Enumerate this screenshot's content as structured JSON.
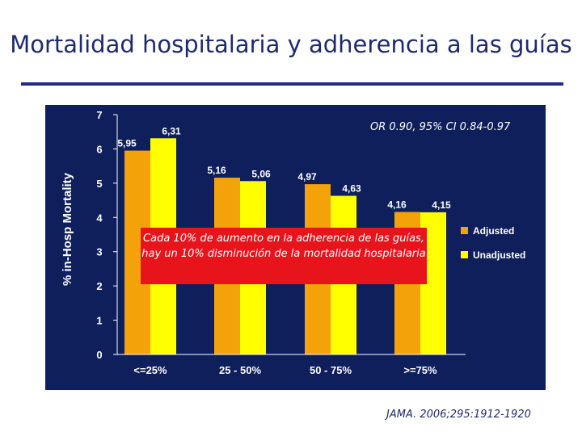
{
  "slide": {
    "title": "Mortalidad hospitalaria y adherencia a las guías",
    "annotation": "OR 0.90, 95% CI 0.84-0.97",
    "callout": "Cada 10% de aumento en la adherencia de las guías, hay un 10% disminución de la mortalidad hospitalaria",
    "citation": "JAMA. 2006;295:1912-1920"
  },
  "colors": {
    "background": "#0f1f5c",
    "adjusted": "#f4a20a",
    "unadjusted": "#ffff00",
    "callout": "#e8141c",
    "title": "#1f2a6b"
  },
  "chart_data": {
    "type": "bar",
    "title": "",
    "xlabel": "",
    "ylabel": "% in-Hosp Mortality",
    "ylim": [
      0,
      7
    ],
    "yticks": [
      0,
      1,
      2,
      3,
      4,
      5,
      6,
      7
    ],
    "categories": [
      "<=25%",
      "25 - 50%",
      "50 - 75%",
      ">=75%"
    ],
    "series": [
      {
        "name": "Adjusted",
        "values": [
          5.95,
          5.16,
          4.97,
          4.16
        ],
        "labels": [
          "5,95",
          "5,16",
          "4,97",
          "4,16"
        ]
      },
      {
        "name": "Unadjusted",
        "values": [
          6.31,
          5.06,
          4.63,
          4.15
        ],
        "labels": [
          "6,31",
          "5,06",
          "4,63",
          "4,15"
        ]
      }
    ],
    "legend": "right",
    "grid": false
  }
}
